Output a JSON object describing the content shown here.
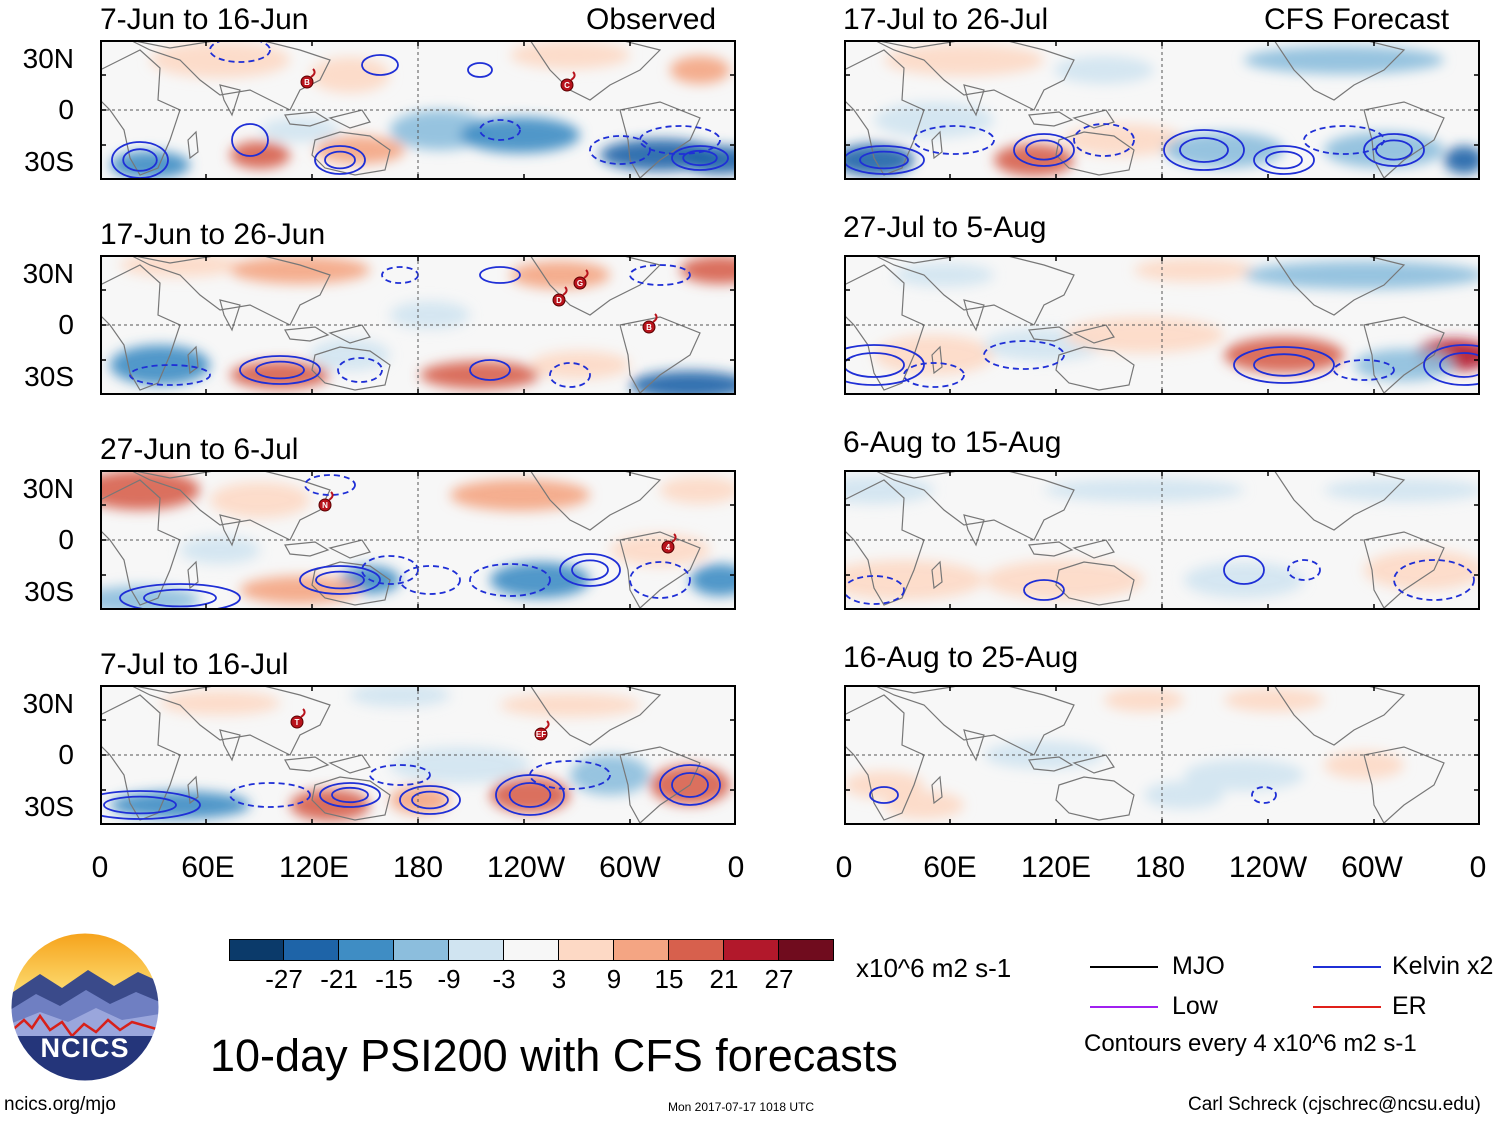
{
  "panels": [
    {
      "title": "7-Jun to 16-Jun",
      "tag": "Observed"
    },
    {
      "title": "17-Jun to 26-Jun",
      "tag": ""
    },
    {
      "title": "27-Jun to 6-Jul",
      "tag": ""
    },
    {
      "title": "7-Jul to 16-Jul",
      "tag": ""
    },
    {
      "title": "17-Jul to 26-Jul",
      "tag": "CFS Forecast"
    },
    {
      "title": "27-Jul to 5-Aug",
      "tag": ""
    },
    {
      "title": "6-Aug to 15-Aug",
      "tag": ""
    },
    {
      "title": "16-Aug to 25-Aug",
      "tag": ""
    }
  ],
  "lat_labels": [
    "30N",
    "0",
    "30S"
  ],
  "lon_labels": [
    "0",
    "60E",
    "120E",
    "180",
    "120W",
    "60W",
    "0"
  ],
  "colorbar": {
    "colors": [
      "#0b3a6a",
      "#1e64a8",
      "#3f8dc4",
      "#8cbedd",
      "#d0e4f1",
      "#f7f7f7",
      "#fdd9c5",
      "#f4a583",
      "#d7604d",
      "#b2182b",
      "#700c1e"
    ],
    "ticks": [
      "-27",
      "-21",
      "-15",
      "-9",
      "-3",
      "3",
      "9",
      "15",
      "21",
      "27"
    ],
    "units": "x10^6 m2 s-1"
  },
  "legend": {
    "items": [
      {
        "label": "MJO",
        "color": "#000000"
      },
      {
        "label": "Kelvin x2",
        "color": "#1f2fd6"
      },
      {
        "label": "Low",
        "color": "#a020f0"
      },
      {
        "label": "ER",
        "color": "#e0201a"
      }
    ],
    "contours_note": "Contours every 4 x10^6 m2 s-1"
  },
  "logo_text": "NCICS",
  "main_title": "10-day PSI200 with CFS forecasts",
  "footer": {
    "left": "ncics.org/mjo",
    "center": "Mon 2017-07-17 1018 UTC",
    "right": "Carl Schreck (cjschrec@ncsu.edu)"
  },
  "storm_labels": [
    [
      "C",
      "B"
    ],
    [
      "D",
      "G",
      "B"
    ],
    [
      "N",
      "4"
    ],
    [
      "T",
      "EF"
    ],
    [],
    [],
    [],
    []
  ]
}
